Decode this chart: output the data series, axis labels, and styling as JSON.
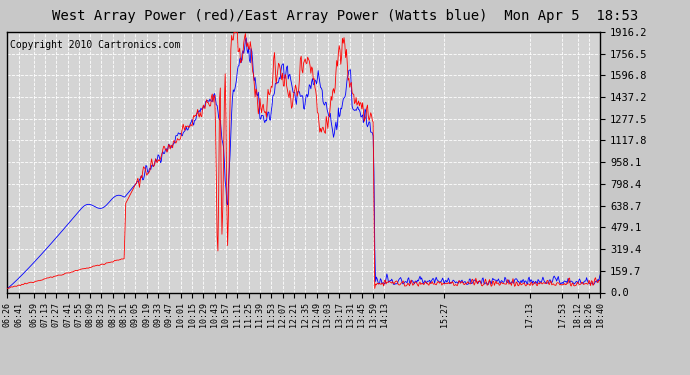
{
  "title": "West Array Power (red)/East Array Power (Watts blue)  Mon Apr 5  18:53",
  "copyright": "Copyright 2010 Cartronics.com",
  "ylabel_right_ticks": [
    0.0,
    159.7,
    319.4,
    479.1,
    638.7,
    798.4,
    958.1,
    1117.8,
    1277.5,
    1437.2,
    1596.8,
    1756.5,
    1916.2
  ],
  "ymax": 1916.2,
  "ymin": 0.0,
  "bg_color": "#c8c8c8",
  "plot_bg_color": "#d4d4d4",
  "grid_color": "#ffffff",
  "red_color": "#ff0000",
  "blue_color": "#0000ff",
  "x_tick_labels": [
    "06:26",
    "06:41",
    "06:59",
    "07:13",
    "07:27",
    "07:41",
    "07:55",
    "08:09",
    "08:23",
    "08:37",
    "08:51",
    "09:05",
    "09:19",
    "09:33",
    "09:47",
    "10:01",
    "10:15",
    "10:29",
    "10:43",
    "10:57",
    "11:11",
    "11:25",
    "11:39",
    "11:53",
    "12:07",
    "12:21",
    "12:35",
    "12:49",
    "13:03",
    "13:17",
    "13:31",
    "13:45",
    "13:59",
    "14:13",
    "15:27",
    "17:13",
    "17:53",
    "18:12",
    "18:26",
    "18:40"
  ],
  "title_fontsize": 10,
  "copyright_fontsize": 7
}
